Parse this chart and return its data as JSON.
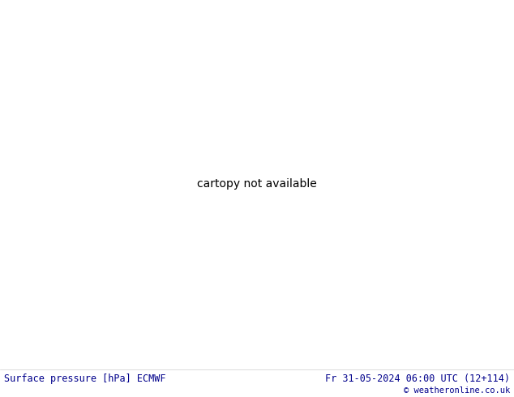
{
  "title_left": "Surface pressure [hPa] ECMWF",
  "title_right": "Fr 31-05-2024 06:00 UTC (12+114)",
  "copyright": "© weatheronline.co.uk",
  "bg_land_color": "#99cc66",
  "bg_sea_color": "#d0e8f0",
  "contour_blue": "#0000cc",
  "contour_red": "#cc0000",
  "contour_black": "#000000",
  "coast_color": "#333333",
  "bottom_bar_color": "#ffffff",
  "bottom_text_color": "#00008b",
  "figsize": [
    6.34,
    4.9
  ],
  "dpi": 100,
  "lon_min": -10,
  "lon_max": 42,
  "lat_min": 27,
  "lat_max": 57
}
